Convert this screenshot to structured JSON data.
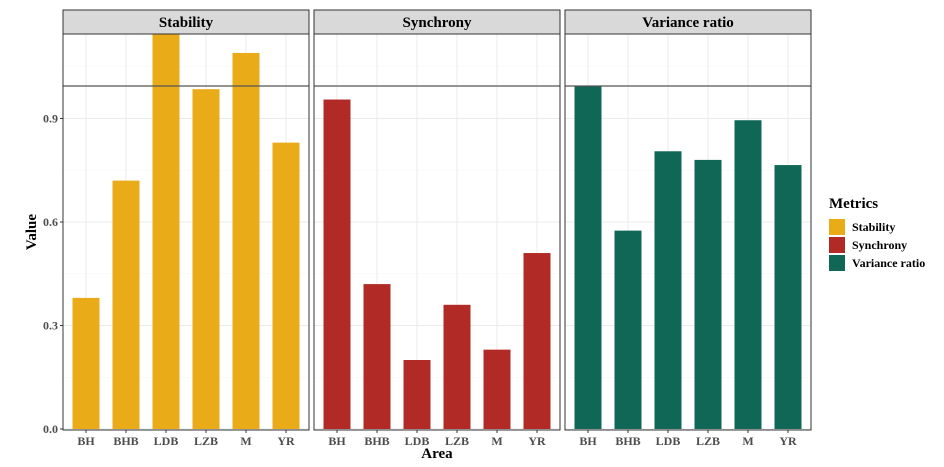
{
  "chart_data": {
    "type": "bar",
    "xlabel": "Area",
    "ylabel": "Value",
    "categories": [
      "BH",
      "BHB",
      "LDB",
      "LZB",
      "M",
      "YR"
    ],
    "yticks": [
      "0.0",
      "0.3",
      "0.6",
      "0.9"
    ],
    "ylim": [
      0,
      1.0
    ],
    "grid": true,
    "facets": [
      {
        "name": "Stability",
        "color": "#E9AB17",
        "values": [
          0.38,
          0.72,
          1.15,
          0.985,
          1.09,
          0.83
        ]
      },
      {
        "name": "Synchrony",
        "color": "#B12A25",
        "values": [
          0.955,
          0.42,
          0.2,
          0.36,
          0.23,
          0.51
        ]
      },
      {
        "name": "Variance ratio",
        "color": "#116755",
        "values": [
          0.995,
          0.575,
          0.805,
          0.78,
          0.895,
          0.765
        ]
      }
    ],
    "legend": {
      "title": "Metrics",
      "position": "right",
      "entries": [
        "Stability",
        "Synchrony",
        "Variance ratio"
      ]
    }
  }
}
